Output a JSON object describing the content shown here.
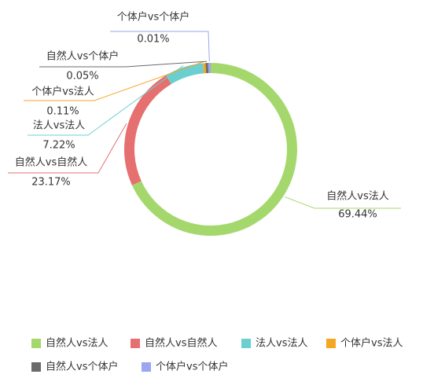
{
  "chart_data": {
    "type": "pie",
    "categories": [
      "自然人vs法人",
      "自然人vs自然人",
      "法人vs法人",
      "个体户vs法人",
      "自然人vs个体户",
      "个体户vs个体户"
    ],
    "values": [
      69.44,
      23.17,
      7.22,
      0.11,
      0.05,
      0.01
    ],
    "value_labels": [
      "69.44%",
      "23.17%",
      "7.22%",
      "0.11%",
      "0.05%",
      "0.01%"
    ],
    "colors": [
      "#a5d86c",
      "#e66f6f",
      "#6ccfcf",
      "#f5a623",
      "#6b6b6b",
      "#9aa6ee"
    ],
    "legend": "bottom"
  }
}
